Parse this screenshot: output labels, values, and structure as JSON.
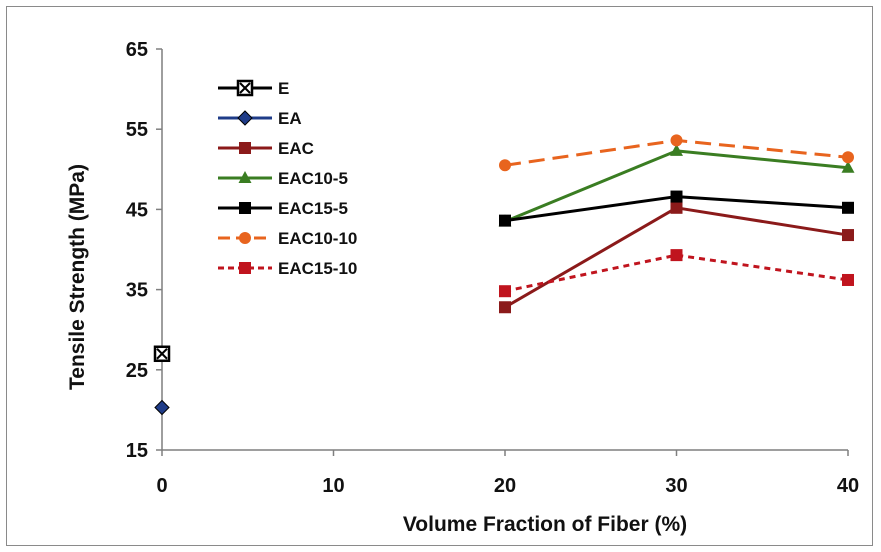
{
  "chart_data": {
    "type": "line",
    "title": "",
    "xlabel": "Volume Fraction of Fiber (%)",
    "ylabel": "Tensile Strength  (MPa)",
    "xlim": [
      0,
      40
    ],
    "ylim": [
      15,
      65
    ],
    "xticks": [
      0,
      10,
      20,
      30,
      40
    ],
    "yticks": [
      15,
      25,
      35,
      45,
      55,
      65
    ],
    "grid": false,
    "legend_position": "top-left",
    "series": [
      {
        "name": "E",
        "color": "#000000",
        "marker": "square-x",
        "dash": "solid",
        "points": [
          {
            "x": 0,
            "y": 27
          }
        ]
      },
      {
        "name": "EA",
        "color": "#1f3c88",
        "marker": "diamond",
        "dash": "solid",
        "points": [
          {
            "x": 0,
            "y": 20.3
          }
        ]
      },
      {
        "name": "EAC",
        "color": "#8b1a1a",
        "marker": "square",
        "dash": "solid",
        "points": [
          {
            "x": 20,
            "y": 32.8
          },
          {
            "x": 30,
            "y": 45.2
          },
          {
            "x": 40,
            "y": 41.8
          }
        ]
      },
      {
        "name": "EAC10-5",
        "color": "#3a7d22",
        "marker": "triangle",
        "dash": "solid",
        "points": [
          {
            "x": 20,
            "y": 43.5
          },
          {
            "x": 30,
            "y": 52.3
          },
          {
            "x": 40,
            "y": 50.2
          }
        ]
      },
      {
        "name": "EAC15-5",
        "color": "#000000",
        "marker": "square",
        "dash": "solid",
        "points": [
          {
            "x": 20,
            "y": 43.6
          },
          {
            "x": 30,
            "y": 46.6
          },
          {
            "x": 40,
            "y": 45.2
          }
        ]
      },
      {
        "name": "EAC10-10",
        "color": "#e8641e",
        "marker": "circle",
        "dash": "long",
        "points": [
          {
            "x": 20,
            "y": 50.5
          },
          {
            "x": 30,
            "y": 53.6
          },
          {
            "x": 40,
            "y": 51.5
          }
        ]
      },
      {
        "name": "EAC15-10",
        "color": "#c0141e",
        "marker": "square",
        "dash": "short",
        "points": [
          {
            "x": 20,
            "y": 34.8
          },
          {
            "x": 30,
            "y": 39.3
          },
          {
            "x": 40,
            "y": 36.2
          }
        ]
      }
    ]
  }
}
